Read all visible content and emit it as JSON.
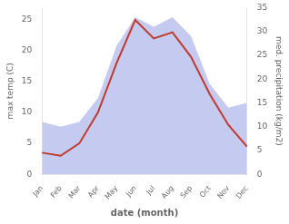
{
  "chart_data": {
    "type": "line",
    "categories": [
      "Jan",
      "Feb",
      "Mar",
      "Apr",
      "May",
      "Jun",
      "Jul",
      "Aug",
      "Sep",
      "Oct",
      "Nov",
      "Dec"
    ],
    "series": [
      {
        "type": "area",
        "axis": "y2",
        "color": "#c5caf0",
        "values": [
          11,
          10,
          11,
          16,
          27,
          33,
          31,
          33,
          29,
          19,
          14,
          15
        ]
      },
      {
        "type": "line",
        "color": "#c0392b",
        "values": [
          3.5,
          3.0,
          5.0,
          10.0,
          18.0,
          25.0,
          22.0,
          23.0,
          19.0,
          13.0,
          8.0,
          4.5
        ]
      }
    ],
    "xlabel": "date (month)",
    "ylabel": "max temp (C)",
    "y2label": "med. precipitation (kg/m2)",
    "ylim": [
      0,
      27
    ],
    "yticks": [
      0,
      5,
      10,
      15,
      20,
      25
    ],
    "y2lim": [
      0,
      35
    ],
    "y2ticks": [
      0,
      5,
      10,
      15,
      20,
      25,
      30,
      35
    ],
    "grid": false
  }
}
